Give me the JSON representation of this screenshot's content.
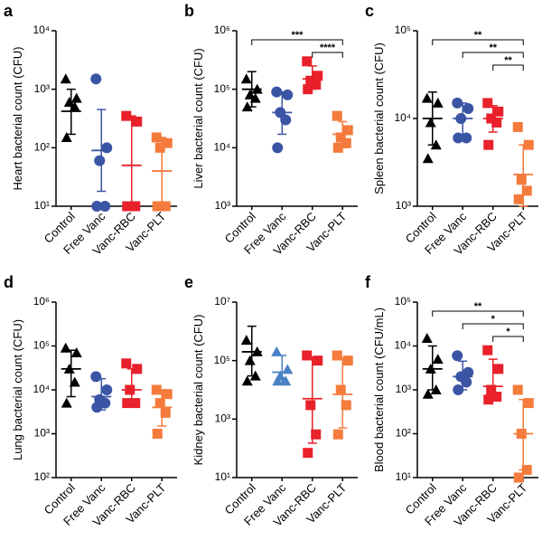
{
  "chart_data": [
    {
      "type": "scatter",
      "panel": "a",
      "ylabel": "Heart bacterial count (CFU)",
      "log_y": true,
      "ylim": [
        10,
        10000
      ],
      "yticks": [
        {
          "value": 10,
          "label": "10¹"
        },
        {
          "value": 100,
          "label": "10²"
        },
        {
          "value": 1000,
          "label": "10³"
        },
        {
          "value": 10000,
          "label": "10⁴"
        }
      ],
      "series": [
        {
          "name": "Control",
          "color": "#000000",
          "marker": "triangle",
          "values": [
            1500,
            700,
            600,
            500,
            150
          ],
          "mean": 420,
          "err_low": 170,
          "err_high": 1000
        },
        {
          "name": "Free Vanc",
          "color": "#3b55a5",
          "marker": "circle",
          "values": [
            1500,
            100,
            60,
            10,
            10
          ],
          "mean": 90,
          "err_low": 18,
          "err_high": 450
        },
        {
          "name": "Vanc-RBC",
          "color": "#e8212b",
          "marker": "square",
          "values": [
            350,
            280,
            10,
            10,
            10
          ],
          "mean": 50,
          "err_low": 10,
          "err_high": 350
        },
        {
          "name": "Vanc-PLT",
          "color": "#f47b3c",
          "marker": "square",
          "values": [
            150,
            120,
            100,
            10,
            10
          ],
          "mean": 40,
          "err_low": 10,
          "err_high": 150
        }
      ],
      "annotations": []
    },
    {
      "type": "scatter",
      "panel": "b",
      "ylabel": "Liver bacterial count (CFU)",
      "log_y": true,
      "ylim": [
        1000,
        1000000
      ],
      "yticks": [
        {
          "value": 1000,
          "label": "10³"
        },
        {
          "value": 10000,
          "label": "10⁴"
        },
        {
          "value": 100000,
          "label": "10⁵"
        },
        {
          "value": 1000000,
          "label": "10⁶"
        }
      ],
      "series": [
        {
          "name": "Control",
          "color": "#000000",
          "marker": "triangle",
          "values": [
            150000,
            100000,
            80000,
            70000,
            50000
          ],
          "mean": 100000,
          "err_low": 50000,
          "err_high": 200000
        },
        {
          "name": "Free Vanc",
          "color": "#3b55a5",
          "marker": "circle",
          "values": [
            90000,
            80000,
            40000,
            30000,
            10000
          ],
          "mean": 40000,
          "err_low": 17000,
          "err_high": 90000
        },
        {
          "name": "Vanc-RBC",
          "color": "#e8212b",
          "marker": "square",
          "values": [
            300000,
            170000,
            140000,
            120000,
            100000
          ],
          "mean": 150000,
          "err_low": 100000,
          "err_high": 250000
        },
        {
          "name": "Vanc-PLT",
          "color": "#f47b3c",
          "marker": "square",
          "values": [
            35000,
            20000,
            15000,
            12000,
            10000
          ],
          "mean": 17000,
          "err_low": 10000,
          "err_high": 28000
        }
      ],
      "annotations": [
        {
          "text": "***",
          "from": "Control",
          "to": "Vanc-PLT"
        },
        {
          "text": "****",
          "from": "Vanc-RBC",
          "to": "Vanc-PLT"
        }
      ]
    },
    {
      "type": "scatter",
      "panel": "c",
      "ylabel": "Spleen bacterial count (CFU)",
      "log_y": true,
      "ylim": [
        1000,
        100000
      ],
      "yticks": [
        {
          "value": 1000,
          "label": "10³"
        },
        {
          "value": 10000,
          "label": "10⁴"
        },
        {
          "value": 100000,
          "label": "10⁵"
        }
      ],
      "series": [
        {
          "name": "Control",
          "color": "#000000",
          "marker": "triangle",
          "values": [
            17000,
            15000,
            9000,
            5000,
            3500
          ],
          "mean": 10000,
          "err_low": 5000,
          "err_high": 20000
        },
        {
          "name": "Free Vanc",
          "color": "#3b55a5",
          "marker": "circle",
          "values": [
            15000,
            13000,
            10000,
            6000,
            6000
          ],
          "mean": 10000,
          "err_low": 6500,
          "err_high": 15000
        },
        {
          "name": "Vanc-RBC",
          "color": "#e8212b",
          "marker": "square",
          "values": [
            15000,
            12000,
            10000,
            9000,
            5000
          ],
          "mean": 10000,
          "err_low": 7000,
          "err_high": 14000
        },
        {
          "name": "Vanc-PLT",
          "color": "#f47b3c",
          "marker": "square",
          "values": [
            8000,
            5000,
            2000,
            1500,
            1200
          ],
          "mean": 2300,
          "err_low": 1000,
          "err_high": 5000
        }
      ],
      "annotations": [
        {
          "text": "**",
          "from": "Control",
          "to": "Vanc-PLT"
        },
        {
          "text": "**",
          "from": "Free Vanc",
          "to": "Vanc-PLT"
        },
        {
          "text": "**",
          "from": "Vanc-RBC",
          "to": "Vanc-PLT"
        }
      ]
    },
    {
      "type": "scatter",
      "panel": "d",
      "ylabel": "Lung bacterial count (CFU)",
      "log_y": true,
      "ylim": [
        100,
        1000000
      ],
      "yticks": [
        {
          "value": 100,
          "label": "10²"
        },
        {
          "value": 1000,
          "label": "10³"
        },
        {
          "value": 10000,
          "label": "10⁴"
        },
        {
          "value": 100000,
          "label": "10⁵"
        },
        {
          "value": 1000000,
          "label": "10⁶"
        }
      ],
      "series": [
        {
          "name": "Control",
          "color": "#000000",
          "marker": "triangle",
          "values": [
            90000,
            70000,
            30000,
            15000,
            5000
          ],
          "mean": 30000,
          "err_low": 7000,
          "err_high": 80000
        },
        {
          "name": "Free Vanc",
          "color": "#3b55a5",
          "marker": "circle",
          "values": [
            20000,
            10000,
            6000,
            5000,
            4000
          ],
          "mean": 7000,
          "err_low": 3500,
          "err_high": 18000
        },
        {
          "name": "Vanc-RBC",
          "color": "#e8212b",
          "marker": "square",
          "values": [
            40000,
            30000,
            10000,
            5000,
            5000
          ],
          "mean": 10000,
          "err_low": 4500,
          "err_high": 30000
        },
        {
          "name": "Vanc-PLT",
          "color": "#f47b3c",
          "marker": "square",
          "values": [
            10000,
            8000,
            5000,
            3000,
            1000
          ],
          "mean": 4000,
          "err_low": 1500,
          "err_high": 10000
        }
      ],
      "annotations": []
    },
    {
      "type": "scatter",
      "panel": "e",
      "ylabel": "Kidney bacterial count (CFU)",
      "log_y": true,
      "ylim": [
        10,
        10000000
      ],
      "yticks": [
        {
          "value": 10,
          "label": "10¹"
        },
        {
          "value": 1000,
          "label": "10³"
        },
        {
          "value": 100000,
          "label": "10⁵"
        },
        {
          "value": 10000000,
          "label": "10⁷"
        }
      ],
      "series": [
        {
          "name": "Control",
          "color": "#000000",
          "marker": "triangle",
          "values": [
            500000,
            200000,
            100000,
            30000,
            20000
          ],
          "mean": 200000,
          "err_low": 30000,
          "err_high": 1500000
        },
        {
          "name": "Free Vanc",
          "color": "#4a80c4",
          "marker": "triangle",
          "values": [
            200000,
            50000,
            30000,
            20000,
            20000
          ],
          "mean": 40000,
          "err_low": 15000,
          "err_high": 150000
        },
        {
          "name": "Vanc-RBC",
          "color": "#e8212b",
          "marker": "square",
          "values": [
            150000,
            100000,
            3000,
            300,
            70
          ],
          "mean": 5000,
          "err_low": 150,
          "err_high": 130000
        },
        {
          "name": "Vanc-PLT",
          "color": "#f47b3c",
          "marker": "square",
          "values": [
            150000,
            100000,
            10000,
            3000,
            300
          ],
          "mean": 7000,
          "err_low": 500,
          "err_high": 120000
        }
      ],
      "annotations": []
    },
    {
      "type": "scatter",
      "panel": "f",
      "ylabel": "Blood bacterial count (CFU/mL)",
      "log_y": true,
      "ylim": [
        10,
        100000
      ],
      "yticks": [
        {
          "value": 10,
          "label": "10¹"
        },
        {
          "value": 100,
          "label": "10²"
        },
        {
          "value": 1000,
          "label": "10³"
        },
        {
          "value": 10000,
          "label": "10⁴"
        },
        {
          "value": 100000,
          "label": "10⁵"
        }
      ],
      "series": [
        {
          "name": "Control",
          "color": "#000000",
          "marker": "triangle",
          "values": [
            15000,
            5000,
            3000,
            1000,
            800
          ],
          "mean": 3000,
          "err_low": 1000,
          "err_high": 10000
        },
        {
          "name": "Free Vanc",
          "color": "#3b55a5",
          "marker": "circle",
          "values": [
            6000,
            2500,
            2000,
            1500,
            1000
          ],
          "mean": 2000,
          "err_low": 1000,
          "err_high": 4500
        },
        {
          "name": "Vanc-RBC",
          "color": "#e8212b",
          "marker": "square",
          "values": [
            8000,
            3000,
            1000,
            700,
            600
          ],
          "mean": 1200,
          "err_low": 600,
          "err_high": 5000
        },
        {
          "name": "Vanc-PLT",
          "color": "#f47b3c",
          "marker": "square",
          "values": [
            1000,
            500,
            100,
            15,
            10
          ],
          "mean": 100,
          "err_low": 15,
          "err_high": 600
        }
      ],
      "annotations": [
        {
          "text": "**",
          "from": "Control",
          "to": "Vanc-PLT"
        },
        {
          "text": "*",
          "from": "Free Vanc",
          "to": "Vanc-PLT"
        },
        {
          "text": "*",
          "from": "Vanc-RBC",
          "to": "Vanc-PLT"
        }
      ]
    }
  ]
}
